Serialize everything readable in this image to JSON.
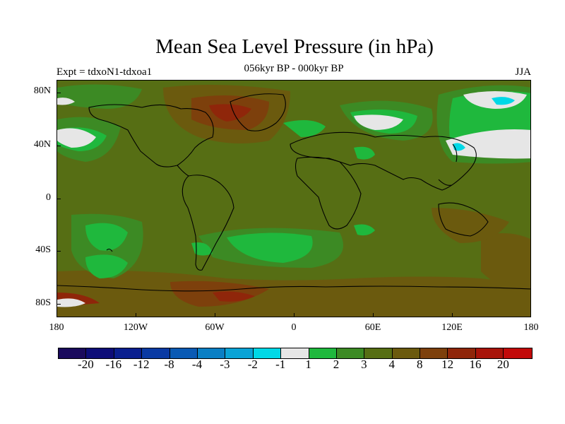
{
  "title": "Mean Sea Level Pressure (in hPa)",
  "subtitle": "056kyr BP - 000kyr BP",
  "experiment": "Expt = tdxoN1-tdxoa1",
  "season": "JJA",
  "axes": {
    "lat_labels": [
      "80N",
      "40N",
      "0",
      "40S",
      "80S"
    ],
    "lon_labels": [
      "180",
      "120W",
      "60W",
      "0",
      "60E",
      "120E",
      "180"
    ]
  },
  "colorbar": {
    "colors": [
      "#1a0a5c",
      "#0d0d78",
      "#0a1f8f",
      "#0a3aa3",
      "#0a5ab4",
      "#0a7fc4",
      "#0aa3d6",
      "#00d8e6",
      "#e6e6e6",
      "#1fb83d",
      "#3c8a24",
      "#566e14",
      "#6b5a0e",
      "#7d400c",
      "#8f260a",
      "#a8140a",
      "#c20a0a"
    ],
    "labels": [
      "-20",
      "-16",
      "-12",
      "-8",
      "-4",
      "-3",
      "-2",
      "-1",
      "1",
      "2",
      "3",
      "4",
      "8",
      "12",
      "16",
      "20"
    ]
  },
  "map_colors": {
    "base": "#566e14",
    "light_green": "#3c8a24",
    "bright_green": "#1fb83d",
    "white": "#e6e6e6",
    "cyan": "#00d8e6",
    "brown": "#6b5a0e",
    "dark_brown": "#7d400c",
    "red_brown": "#8f260a"
  }
}
